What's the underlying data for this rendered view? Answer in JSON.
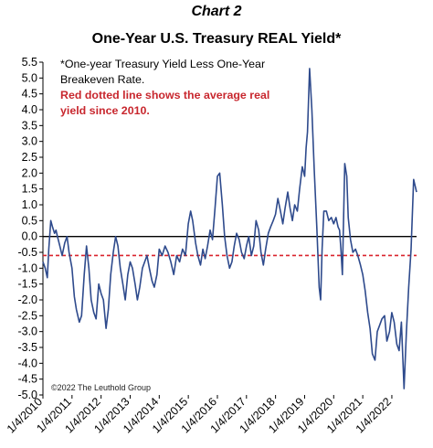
{
  "header": {
    "chart_label": "Chart 2",
    "title": "One-Year U.S. Treasury REAL Yield*"
  },
  "annotation": {
    "line1": "*One-year Treasury Yield Less One-Year",
    "line2": "Breakeven Rate.",
    "line3": "Red dotted line shows the average real",
    "line4": "yield since 2010.",
    "red_color": "#c8272e"
  },
  "credit": "©2022 The Leuthold Group",
  "chart_data": {
    "type": "line",
    "title": "One-Year U.S. Treasury REAL Yield*",
    "xlabel": "",
    "ylabel": "",
    "ylim": [
      -5.0,
      5.5
    ],
    "y_ticks": [
      "5.5",
      "5.0",
      "4.5",
      "4.0",
      "3.5",
      "3.0",
      "2.5",
      "2.0",
      "1.5",
      "1.0",
      "0.5",
      "0.0",
      "-0.5",
      "-1.0",
      "-1.5",
      "-2.0",
      "-2.5",
      "-3.0",
      "-3.5",
      "-4.0",
      "-4.5",
      "-5.0"
    ],
    "x_ticks": [
      "1/4/2010",
      "1/4/2011",
      "1/4/2012",
      "1/4/2013",
      "1/4/2014",
      "1/4/2015",
      "1/4/2016",
      "1/4/2017",
      "1/4/2018",
      "1/4/2019",
      "1/4/2020",
      "1/4/2021",
      "1/4/2022"
    ],
    "xlim": [
      2010.0,
      2022.85
    ],
    "grid": false,
    "line_color": "#2e4a8c",
    "zero_line_color": "#000000",
    "average": {
      "value": -0.6,
      "color": "#d9232d",
      "style": "dotted"
    },
    "series": [
      {
        "x": [
          2010.0,
          2010.08,
          2010.15,
          2010.2,
          2010.27,
          2010.33,
          2010.4,
          2010.45,
          2010.5,
          2010.58,
          2010.66,
          2010.75,
          2010.83,
          2010.9,
          2011.0,
          2011.08,
          2011.15,
          2011.25,
          2011.33,
          2011.42,
          2011.5,
          2011.58,
          2011.66,
          2011.75,
          2011.83,
          2011.92,
          2012.0,
          2012.08,
          2012.17,
          2012.25,
          2012.33,
          2012.42,
          2012.5,
          2012.58,
          2012.66,
          2012.75,
          2012.83,
          2012.92,
          2013.0,
          2013.08,
          2013.17,
          2013.25,
          2013.33,
          2013.42,
          2013.5,
          2013.58,
          2013.66,
          2013.75,
          2013.83,
          2013.92,
          2014.0,
          2014.1,
          2014.2,
          2014.3,
          2014.4,
          2014.5,
          2014.6,
          2014.7,
          2014.8,
          2014.9,
          2015.0,
          2015.08,
          2015.15,
          2015.25,
          2015.33,
          2015.42,
          2015.5,
          2015.58,
          2015.66,
          2015.75,
          2015.83,
          2015.92,
          2016.0,
          2016.08,
          2016.17,
          2016.25,
          2016.33,
          2016.42,
          2016.5,
          2016.58,
          2016.66,
          2016.75,
          2016.83,
          2016.92,
          2017.0,
          2017.08,
          2017.17,
          2017.25,
          2017.33,
          2017.42,
          2017.5,
          2017.58,
          2017.66,
          2017.75,
          2017.83,
          2017.92,
          2018.0,
          2018.08,
          2018.17,
          2018.25,
          2018.33,
          2018.42,
          2018.5,
          2018.58,
          2018.66,
          2018.75,
          2018.83,
          2018.92,
          2019.0,
          2019.05,
          2019.1,
          2019.17,
          2019.25,
          2019.33,
          2019.42,
          2019.5,
          2019.55,
          2019.6,
          2019.66,
          2019.75,
          2019.83,
          2019.92,
          2020.0,
          2020.08,
          2020.15,
          2020.2,
          2020.25,
          2020.3,
          2020.38,
          2020.45,
          2020.5,
          2020.58,
          2020.66,
          2020.75,
          2020.83,
          2020.92,
          2021.0,
          2021.08,
          2021.17,
          2021.25,
          2021.33,
          2021.42,
          2021.5,
          2021.58,
          2021.66,
          2021.75,
          2021.83,
          2021.92,
          2022.0,
          2022.08,
          2022.17,
          2022.25,
          2022.33,
          2022.42,
          2022.5,
          2022.58,
          2022.66,
          2022.75,
          2022.8,
          2022.85
        ],
        "values": [
          -0.8,
          -1.0,
          -1.3,
          -0.4,
          0.5,
          0.3,
          0.1,
          0.2,
          0.0,
          -0.3,
          -0.6,
          -0.2,
          0.0,
          -0.5,
          -1.0,
          -1.9,
          -2.3,
          -2.7,
          -2.5,
          -1.2,
          -0.3,
          -1.0,
          -2.0,
          -2.4,
          -2.6,
          -1.5,
          -1.8,
          -2.0,
          -2.9,
          -2.3,
          -1.2,
          -0.5,
          0.0,
          -0.3,
          -1.0,
          -1.5,
          -2.0,
          -1.2,
          -0.8,
          -1.0,
          -1.5,
          -2.0,
          -1.6,
          -1.0,
          -0.8,
          -0.6,
          -1.0,
          -1.4,
          -1.6,
          -1.2,
          -0.4,
          -0.6,
          -0.3,
          -0.5,
          -0.8,
          -1.2,
          -0.6,
          -0.8,
          -0.4,
          -0.6,
          0.4,
          0.8,
          0.5,
          -0.2,
          -0.6,
          -0.9,
          -0.4,
          -0.7,
          -0.3,
          0.2,
          -0.1,
          0.9,
          1.9,
          2.0,
          1.0,
          0.0,
          -0.6,
          -1.0,
          -0.8,
          -0.3,
          0.1,
          -0.1,
          -0.5,
          -0.7,
          -0.3,
          0.0,
          -0.6,
          -0.3,
          0.5,
          0.2,
          -0.5,
          -0.9,
          -0.4,
          0.1,
          0.3,
          0.5,
          0.7,
          1.2,
          0.8,
          0.4,
          0.9,
          1.4,
          0.9,
          0.5,
          1.0,
          0.8,
          1.5,
          2.2,
          1.9,
          2.8,
          3.3,
          5.3,
          4.0,
          2.1,
          0.3,
          -1.6,
          -2.0,
          -0.4,
          0.8,
          0.8,
          0.5,
          0.6,
          0.4,
          0.6,
          0.3,
          0.2,
          -0.4,
          -1.2,
          2.3,
          1.9,
          0.6,
          -0.1,
          -0.5,
          -0.4,
          -0.6,
          -0.9,
          -1.2,
          -1.7,
          -2.4,
          -2.9,
          -3.7,
          -3.9,
          -3.0,
          -2.8,
          -2.6,
          -2.5,
          -3.3,
          -3.0,
          -2.4,
          -2.7,
          -3.4,
          -3.6,
          -2.7,
          -4.8,
          -3.0,
          -1.6,
          -0.4,
          1.8,
          1.6,
          1.4
        ]
      }
    ]
  }
}
